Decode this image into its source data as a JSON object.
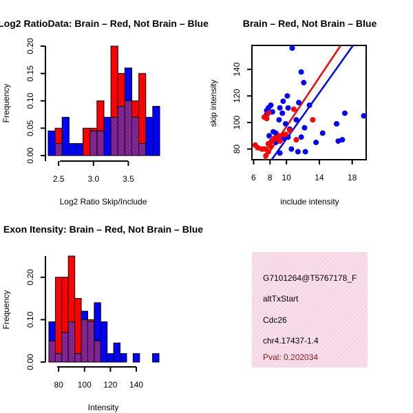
{
  "chart_data": [
    {
      "type": "bar",
      "subtype": "overlaid-histogram",
      "title": "Log2 RatioData: Brain – Red, Not Brain – Blue",
      "xlabel": "Log2 Ratio Skip/Include",
      "ylabel": "Frequency",
      "xlim": [
        2.35,
        3.95
      ],
      "ylim": [
        0,
        0.2
      ],
      "x_ticks": [
        2.5,
        3.0,
        3.5
      ],
      "x_tick_labels": [
        "2.5",
        "3.0",
        "3.5"
      ],
      "y_ticks": [
        0,
        0.05,
        0.1,
        0.15,
        0.2
      ],
      "y_tick_labels": [
        "0.00",
        "0.05",
        "0.10",
        "0.15",
        "0.20"
      ],
      "bin_edges": [
        2.35,
        2.45,
        2.55,
        2.65,
        2.75,
        2.85,
        2.95,
        3.05,
        3.15,
        3.25,
        3.35,
        3.45,
        3.55,
        3.65,
        3.75,
        3.85,
        3.95
      ],
      "series": [
        {
          "name": "Brain",
          "color": "#ff0000",
          "values": [
            0,
            0.05,
            0,
            0,
            0,
            0.05,
            0.05,
            0.1,
            0,
            0.2,
            0.15,
            0.1,
            0.1,
            0.15,
            0,
            0
          ]
        },
        {
          "name": "Not Brain",
          "color": "#0000ff",
          "values": [
            0.045,
            0.022,
            0.07,
            0.022,
            0.022,
            0,
            0.045,
            0.045,
            0.07,
            0.07,
            0.09,
            0.16,
            0.07,
            0.022,
            0.07,
            0.09
          ]
        }
      ]
    },
    {
      "type": "scatter",
      "title": "Brain – Red, Not Brain – Blue",
      "xlabel": "include intensity",
      "ylabel": "skip intensity",
      "xlim": [
        5.8,
        19.7
      ],
      "ylim": [
        72,
        158
      ],
      "x_ticks": [
        6,
        8,
        10,
        14,
        18
      ],
      "x_tick_labels": [
        "6",
        "8",
        "10",
        "14",
        "18"
      ],
      "y_ticks": [
        80,
        100,
        120,
        140
      ],
      "y_tick_labels": [
        "80",
        "100",
        "120",
        "140"
      ],
      "series": [
        {
          "name": "Brain",
          "color": "#ff0000",
          "points": [
            [
              6.2,
              83
            ],
            [
              6.5,
              81
            ],
            [
              7,
              80
            ],
            [
              7.2,
              80
            ],
            [
              7.5,
              75
            ],
            [
              7.5,
              80
            ],
            [
              7.8,
              84
            ],
            [
              7.8,
              78
            ],
            [
              8.1,
              82
            ],
            [
              8.3,
              86
            ],
            [
              8.5,
              88
            ],
            [
              8.8,
              88
            ],
            [
              9.2,
              86
            ],
            [
              9.6,
              91
            ],
            [
              9.9,
              91
            ],
            [
              10.4,
              94
            ],
            [
              10.9,
              110
            ],
            [
              11.2,
              87
            ],
            [
              7.3,
              104
            ],
            [
              7.8,
              107
            ],
            [
              7.6,
              103
            ],
            [
              13.2,
              102
            ],
            [
              9.1,
              90
            ]
          ],
          "fit": [
            [
              7.3,
              72
            ],
            [
              16.6,
              158
            ]
          ]
        },
        {
          "name": "Not Brain",
          "color": "#0000ff",
          "points": [
            [
              10.7,
              156
            ],
            [
              11.8,
              138
            ],
            [
              12.1,
              130
            ],
            [
              10.1,
              120
            ],
            [
              9.6,
              116
            ],
            [
              11.5,
              115
            ],
            [
              12.8,
              113
            ],
            [
              9.2,
              111
            ],
            [
              10.2,
              111
            ],
            [
              9.5,
              107
            ],
            [
              11.2,
              102
            ],
            [
              9.1,
              102
            ],
            [
              7.6,
              109
            ],
            [
              7.8,
              111
            ],
            [
              8.1,
              113
            ],
            [
              8.3,
              108
            ],
            [
              7.6,
              106
            ],
            [
              9.9,
              99
            ],
            [
              10.4,
              95
            ],
            [
              10.2,
              89
            ],
            [
              9.6,
              88
            ],
            [
              8.9,
              90
            ],
            [
              8.4,
              93
            ],
            [
              8.7,
              92
            ],
            [
              7.9,
              90
            ],
            [
              8.2,
              86
            ],
            [
              11.8,
              89
            ],
            [
              12.2,
              96
            ],
            [
              11.4,
              78
            ],
            [
              12.3,
              78
            ],
            [
              13.6,
              85
            ],
            [
              14.4,
              92
            ],
            [
              16.1,
              99
            ],
            [
              16.3,
              86
            ],
            [
              16.8,
              87
            ],
            [
              17.1,
              107
            ],
            [
              19.4,
              105
            ],
            [
              9.2,
              77
            ],
            [
              10.6,
              80
            ],
            [
              8.7,
              85
            ]
          ],
          "fit": [
            [
              8.2,
              72
            ],
            [
              18.1,
              158
            ]
          ]
        }
      ]
    },
    {
      "type": "bar",
      "subtype": "overlaid-histogram",
      "title": "Exon Itensity: Brain – Red, Not Brain – Blue",
      "xlabel": "Intensity",
      "ylabel": "Frequency",
      "xlim": [
        72.5,
        157.5
      ],
      "ylim": [
        0,
        0.25
      ],
      "x_ticks": [
        80,
        100,
        120,
        140
      ],
      "x_tick_labels": [
        "80",
        "100",
        "120",
        "140"
      ],
      "y_ticks": [
        0,
        0.1,
        0.2
      ],
      "y_tick_labels": [
        "0.00",
        "0.10",
        "0.20"
      ],
      "bin_edges": [
        72.5,
        77.5,
        82.5,
        87.5,
        92.5,
        97.5,
        102.5,
        107.5,
        112.5,
        117.5,
        122.5,
        127.5,
        132.5,
        137.5,
        142.5,
        147.5,
        152.5,
        157.5
      ],
      "series": [
        {
          "name": "Brain",
          "color": "#ff0000",
          "values": [
            0.05,
            0.2,
            0.2,
            0.25,
            0.15,
            0.1,
            0.1,
            0.05,
            0,
            0,
            0,
            0,
            0,
            0,
            0,
            0,
            0
          ]
        },
        {
          "name": "Not Brain",
          "color": "#0000ff",
          "values": [
            0.095,
            0.02,
            0.07,
            0.095,
            0.02,
            0.12,
            0.095,
            0.14,
            0.095,
            0.02,
            0.045,
            0.02,
            0,
            0.02,
            0,
            0,
            0.02
          ]
        }
      ]
    }
  ],
  "info_panel": {
    "probe_id": "G7101264@T5767178_F",
    "event_type": "altTxStart",
    "gene": "Cdc26",
    "location": "chr4.17437-1.4",
    "pval_text": "Pval: 0.202034"
  },
  "colors": {
    "brain": "#ff0000",
    "not_brain": "#0000ff",
    "overlap": "#7a1f8f",
    "panel_bg": "#f7dcea",
    "pval": "#8b1a1a"
  }
}
